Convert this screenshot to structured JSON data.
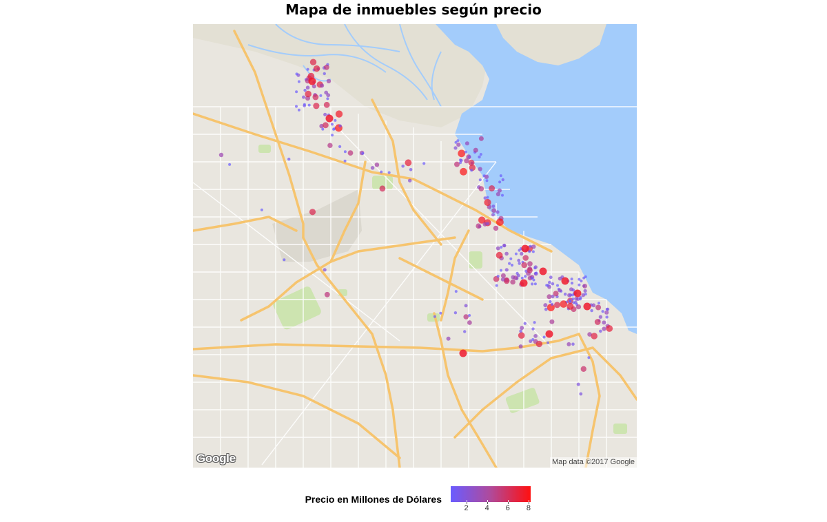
{
  "title": "Mapa de inmuebles según precio",
  "map": {
    "logo_text": "Google",
    "attribution": "Map data ©2017 Google",
    "colors": {
      "water": "#a3ccfb",
      "land": "#e9e6df",
      "highway": "#f6c46e",
      "park": "#cde4b0",
      "point_low": "#6a5cff",
      "point_high": "#ff1010"
    }
  },
  "legend": {
    "title": "Precio en Millones de Dólares",
    "ticks": [
      "2",
      "4",
      "6",
      "8"
    ],
    "tick_values": [
      2,
      4,
      6,
      8
    ],
    "range": [
      0.5,
      8.2
    ],
    "gradient": [
      "#6a5cff",
      "#ff1010"
    ]
  }
}
